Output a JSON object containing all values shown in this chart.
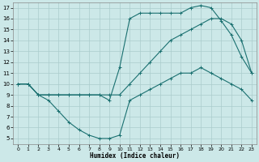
{
  "xlabel": "Humidex (Indice chaleur)",
  "bg_color": "#cce8e8",
  "line_color": "#1a7070",
  "grid_color": "#aacccc",
  "xlim": [
    -0.5,
    23.5
  ],
  "ylim": [
    4.5,
    17.5
  ],
  "xticks": [
    0,
    1,
    2,
    3,
    4,
    5,
    6,
    7,
    8,
    9,
    10,
    11,
    12,
    13,
    14,
    15,
    16,
    17,
    18,
    19,
    20,
    21,
    22,
    23
  ],
  "yticks": [
    5,
    6,
    7,
    8,
    9,
    10,
    11,
    12,
    13,
    14,
    15,
    16,
    17
  ],
  "line1_x": [
    0,
    1,
    2,
    3,
    4,
    5,
    6,
    7,
    8,
    9,
    10,
    11,
    12,
    13,
    14,
    15,
    16,
    17,
    18,
    19,
    20,
    21,
    22,
    23
  ],
  "line1_y": [
    10,
    10,
    9,
    9,
    9,
    9,
    9,
    9,
    9,
    9,
    9,
    10,
    11,
    12,
    13,
    14,
    14.5,
    15,
    15.5,
    16,
    16,
    15.5,
    14,
    11
  ],
  "line2_x": [
    0,
    1,
    2,
    3,
    4,
    5,
    6,
    7,
    8,
    9,
    10,
    11,
    12,
    13,
    14,
    15,
    16,
    17,
    18,
    19,
    20,
    21,
    22,
    23
  ],
  "line2_y": [
    10,
    10,
    9,
    8.5,
    7.5,
    6.5,
    5.8,
    5.3,
    5.0,
    5.0,
    5.3,
    8.5,
    9,
    9.5,
    10,
    10.5,
    11,
    11,
    11.5,
    11,
    10.5,
    10,
    9.5,
    8.5
  ],
  "line3_x": [
    0,
    1,
    2,
    3,
    4,
    5,
    6,
    7,
    8,
    9,
    10,
    11,
    12,
    13,
    14,
    15,
    16,
    17,
    18,
    19,
    20,
    21,
    22,
    23
  ],
  "line3_y": [
    10,
    10,
    9,
    9,
    9,
    9,
    9,
    9,
    9,
    8.5,
    11.5,
    16,
    16.5,
    16.5,
    16.5,
    16.5,
    16.5,
    17,
    17.2,
    17,
    15.8,
    14.5,
    12.5,
    11
  ]
}
